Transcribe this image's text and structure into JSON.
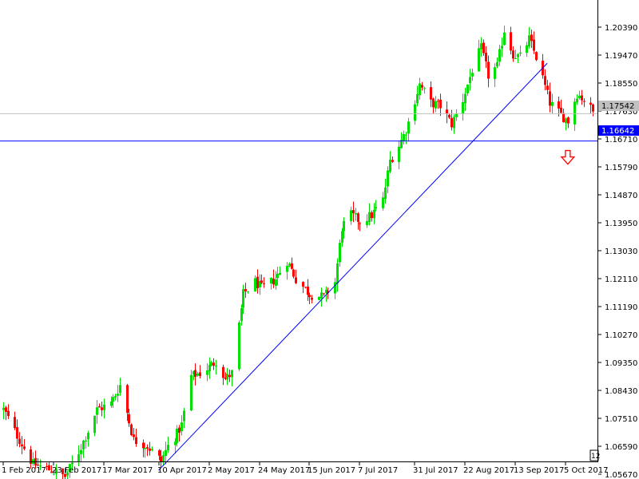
{
  "chart_data": {
    "type": "candlestick",
    "title": "",
    "xlabel": "",
    "ylabel": "",
    "ylim": [
      1.051,
      1.2131
    ],
    "grid": false,
    "colors": {
      "background": "#ffffff",
      "bull": "#00e000",
      "bear": "#ff0000",
      "trendline": "#0000ff",
      "support_line": "#0000ff",
      "bid_line": "#c0c0c0",
      "price_label_bg": "#c0c0c0",
      "support_label_bg": "#0000ff",
      "arrow": "#ff0000",
      "axis": "#000000"
    },
    "y_ticks": [
      "1.20390",
      "1.19470",
      "1.18550",
      "1.17630",
      "1.16710",
      "1.15790",
      "1.14870",
      "1.13950",
      "1.13030",
      "1.12110",
      "1.11190",
      "1.10270",
      "1.09350",
      "1.08430",
      "1.07510",
      "1.06590",
      "1.05670"
    ],
    "x_ticks": [
      "1 Feb 2017",
      "23 Feb 2017",
      "17 Mar 2017",
      "10 Apr 2017",
      "2 May 2017",
      "24 May 2017",
      "15 Jun 2017",
      "7 Jul 2017",
      "31 Jul 2017",
      "22 Aug 2017",
      "13 Sep 2017",
      "5 Oct 2017"
    ],
    "current_price_label": "1.17542",
    "current_price": 1.17542,
    "support_level_label": "1.16642",
    "support_level": 1.16642,
    "corner_label": "12",
    "trendline": {
      "start": [
        "10 Apr 2017",
        1.058
      ],
      "end": [
        "27 Sep 2017",
        1.192
      ]
    },
    "signal_arrow": {
      "direction": "down",
      "date": "6 Oct 2017"
    },
    "waypoints": [
      [
        "1 Feb 2017",
        1.078
      ],
      [
        "8 Feb 2017",
        1.068
      ],
      [
        "14 Feb 2017",
        1.06
      ],
      [
        "22 Feb 2017",
        1.058
      ],
      [
        "28 Feb 2017",
        1.056
      ],
      [
        "6 Mar 2017",
        1.064
      ],
      [
        "14 Mar 2017",
        1.078
      ],
      [
        "20 Mar 2017",
        1.08
      ],
      [
        "24 Mar 2017",
        1.086
      ],
      [
        "30 Mar 2017",
        1.068
      ],
      [
        "5 Apr 2017",
        1.066
      ],
      [
        "11 Apr 2017",
        1.061
      ],
      [
        "14 Apr 2017",
        1.066
      ],
      [
        "18 Apr 2017",
        1.07
      ],
      [
        "20 Apr 2017",
        1.073
      ],
      [
        "24 Apr 2017",
        1.089
      ],
      [
        "28 Apr 2017",
        1.09
      ],
      [
        "2 May 2017",
        1.092
      ],
      [
        "5 May 2017",
        1.094
      ],
      [
        "9 May 2017",
        1.088
      ],
      [
        "12 May 2017",
        1.09
      ],
      [
        "17 May 2017",
        1.116
      ],
      [
        "22 May 2017",
        1.12
      ],
      [
        "25 May 2017",
        1.118
      ],
      [
        "31 May 2017",
        1.121
      ],
      [
        "5 Jun 2017",
        1.127
      ],
      [
        "9 Jun 2017",
        1.121
      ],
      [
        "15 Jun 2017",
        1.116
      ],
      [
        "21 Jun 2017",
        1.115
      ],
      [
        "26 Jun 2017",
        1.12
      ],
      [
        "29 Jun 2017",
        1.138
      ],
      [
        "3 Jul 2017",
        1.142
      ],
      [
        "7 Jul 2017",
        1.14
      ],
      [
        "12 Jul 2017",
        1.142
      ],
      [
        "17 Jul 2017",
        1.147
      ],
      [
        "20 Jul 2017",
        1.16
      ],
      [
        "24 Jul 2017",
        1.165
      ],
      [
        "27 Jul 2017",
        1.17
      ],
      [
        "2 Aug 2017",
        1.185
      ],
      [
        "7 Aug 2017",
        1.179
      ],
      [
        "11 Aug 2017",
        1.178
      ],
      [
        "16 Aug 2017",
        1.172
      ],
      [
        "21 Aug 2017",
        1.18
      ],
      [
        "25 Aug 2017",
        1.19
      ],
      [
        "29 Aug 2017",
        1.197
      ],
      [
        "1 Sep 2017",
        1.188
      ],
      [
        "5 Sep 2017",
        1.191
      ],
      [
        "8 Sep 2017",
        1.203
      ],
      [
        "12 Sep 2017",
        1.195
      ],
      [
        "15 Sep 2017",
        1.194
      ],
      [
        "19 Sep 2017",
        1.2
      ],
      [
        "22 Sep 2017",
        1.194
      ],
      [
        "25 Sep 2017",
        1.187
      ],
      [
        "28 Sep 2017",
        1.179
      ],
      [
        "3 Oct 2017",
        1.175
      ],
      [
        "6 Oct 2017",
        1.173
      ],
      [
        "10 Oct 2017",
        1.182
      ],
      [
        "13 Oct 2017",
        1.18
      ],
      [
        "17 Oct 2017",
        1.176
      ]
    ]
  }
}
